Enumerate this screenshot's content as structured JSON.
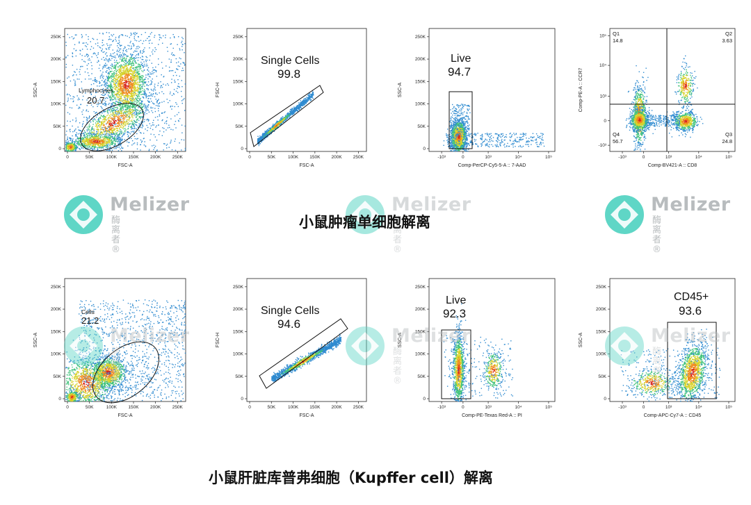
{
  "sections": [
    {
      "caption": "小鼠肿瘤单细胞解离",
      "plots": [
        {
          "type": "scatter",
          "xlabel": "FSC-A",
          "ylabel": "SSC-A",
          "xticks": [
            "0",
            "50K",
            "100K",
            "150K",
            "200K",
            "250K"
          ],
          "yticks": [
            "0",
            "50K",
            "100K",
            "150K",
            "200K",
            "250K"
          ],
          "xlim": [
            0,
            262144
          ],
          "ylim": [
            0,
            262144
          ],
          "gate": {
            "shape": "ellipse",
            "label": "Lymphocytes",
            "value": "20.7"
          },
          "populations": [
            {
              "x": 130000,
              "y": 145000,
              "count": 2200
            },
            {
              "x": 80000,
              "y": 22000,
              "count": 800
            },
            {
              "x": 15000,
              "y": 8000,
              "count": 400
            }
          ]
        },
        {
          "type": "scatter",
          "xlabel": "FSC-A",
          "ylabel": "FSC-H",
          "xticks": [
            "0",
            "50K",
            "100K",
            "150K",
            "200K",
            "250K"
          ],
          "yticks": [
            "0",
            "50K",
            "100K",
            "150K",
            "200K",
            "250K"
          ],
          "xlim": [
            0,
            262144
          ],
          "ylim": [
            0,
            262144
          ],
          "gate": {
            "shape": "polygon",
            "label": "Single Cells",
            "value": "99.8"
          },
          "populations": [
            {
              "x": 60000,
              "y": 45000,
              "count": 1500,
              "diagonal": true
            }
          ]
        },
        {
          "type": "scatter",
          "xlabel": "Comp-PerCP-Cy5-5-A :: 7-AAD",
          "ylabel": "SSC-A",
          "xticks": [
            "-10³",
            "0",
            "10³",
            "10⁴",
            "10⁵"
          ],
          "yticks": [
            "0",
            "50K",
            "100K",
            "150K",
            "200K",
            "250K"
          ],
          "xscale": "biexponential",
          "gate": {
            "shape": "rect",
            "label": "Live",
            "value": "94.7"
          },
          "populations": [
            {
              "x": 0,
              "y": 25000,
              "count": 1400
            }
          ]
        },
        {
          "type": "scatter",
          "xlabel": "Comp-BV421-A :: CD8",
          "ylabel": "Comp-PE-A :: CCR7",
          "xticks": [
            "-10³",
            "0",
            "10³",
            "10⁴",
            "10⁵"
          ],
          "yticks": [
            "-10³",
            "0",
            "10³",
            "10⁴",
            "10⁵"
          ],
          "xscale": "biexponential",
          "yscale": "biexponential",
          "quadrants": [
            {
              "name": "Q1",
              "value": "14.8"
            },
            {
              "name": "Q2",
              "value": "3.63"
            },
            {
              "name": "Q3",
              "value": "24.8"
            },
            {
              "name": "Q4",
              "value": "56.7"
            }
          ]
        }
      ]
    },
    {
      "caption": "小鼠肝脏库普弗细胞（Kupffer cell）解离",
      "plots": [
        {
          "type": "scatter",
          "xlabel": "FSC-A",
          "ylabel": "SSC-A",
          "xticks": [
            "0",
            "50K",
            "100K",
            "150K",
            "200K",
            "250K"
          ],
          "yticks": [
            "0",
            "50K",
            "100K",
            "150K",
            "200K",
            "250K"
          ],
          "xlim": [
            0,
            262144
          ],
          "ylim": [
            0,
            262144
          ],
          "gate": {
            "shape": "ellipse",
            "label": "Cells",
            "value": "21.2"
          },
          "populations": [
            {
              "x": 90000,
              "y": 45000,
              "count": 1600
            },
            {
              "x": 30000,
              "y": 25000,
              "count": 1000
            }
          ]
        },
        {
          "type": "scatter",
          "xlabel": "FSC-A",
          "ylabel": "FSC-H",
          "xticks": [
            "0",
            "50K",
            "100K",
            "150K",
            "200K",
            "250K"
          ],
          "yticks": [
            "0",
            "50K",
            "100K",
            "150K",
            "200K",
            "250K"
          ],
          "xlim": [
            0,
            262144
          ],
          "ylim": [
            0,
            262144
          ],
          "gate": {
            "shape": "polygon",
            "label": "Single Cells",
            "value": "94.6"
          },
          "populations": [
            {
              "x": 100000,
              "y": 70000,
              "count": 1500,
              "diagonal": true
            }
          ]
        },
        {
          "type": "scatter",
          "xlabel": "Comp-PE-Texas Red-A :: PI",
          "ylabel": "SSC-A",
          "xticks": [
            "-10³",
            "0",
            "10³",
            "10⁴",
            "10⁵"
          ],
          "yticks": [
            "0",
            "50K",
            "100K",
            "150K",
            "200K",
            "250K"
          ],
          "xscale": "biexponential",
          "gate": {
            "shape": "rect",
            "label": "Live",
            "value": "92.3"
          },
          "populations": [
            {
              "x": 0,
              "y": 50000,
              "count": 1300
            }
          ]
        },
        {
          "type": "scatter",
          "xlabel": "Comp-APC-Cy7-A :: CD45",
          "ylabel": "SSC-A",
          "xticks": [
            "-10³",
            "0",
            "10³",
            "10⁴",
            "10⁵"
          ],
          "yticks": [
            "0",
            "50K",
            "100K",
            "150K",
            "200K",
            "250K"
          ],
          "xscale": "biexponential",
          "gate": {
            "shape": "rect",
            "label": "CD45+",
            "value": "93.6"
          },
          "populations": [
            {
              "x": 8000,
              "y": 50000,
              "count": 1500
            }
          ]
        }
      ]
    }
  ],
  "watermark": {
    "brand": "Melizer",
    "sub": "酶离者®",
    "icon": "melizer-logo-icon",
    "color": "#5fd6c6"
  }
}
